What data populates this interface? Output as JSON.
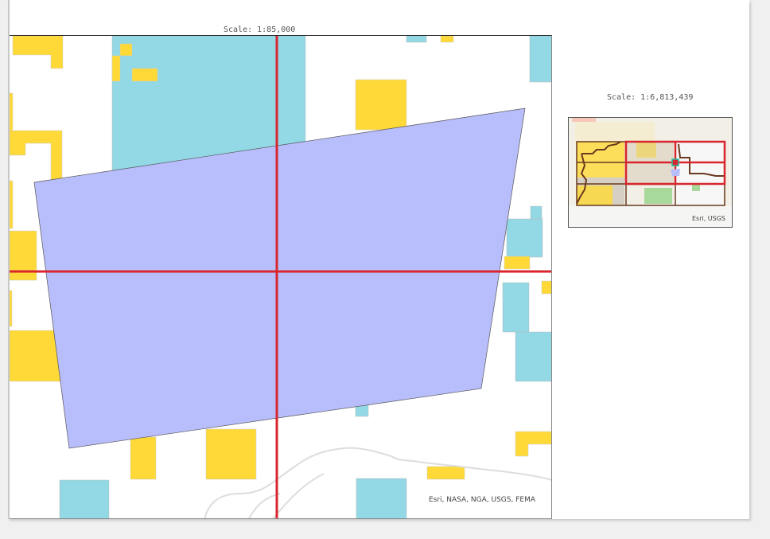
{
  "main_map": {
    "scale_label": "Scale: 1:85,000",
    "attribution": "Esri, NASA, NGA, USGS, FEMA",
    "colors": {
      "yellow": "#fed937",
      "blue": "#92d8e5",
      "polygon": "#b8bdfb",
      "crosshair": "#d9262e"
    }
  },
  "overview_map": {
    "scale_label": "Scale: 1:6,813,439",
    "attribution": "Esri, USGS",
    "colors": {
      "boundary": "#6b3a1f",
      "grid": "#d9262e",
      "marker": "#1fbf9f"
    }
  }
}
